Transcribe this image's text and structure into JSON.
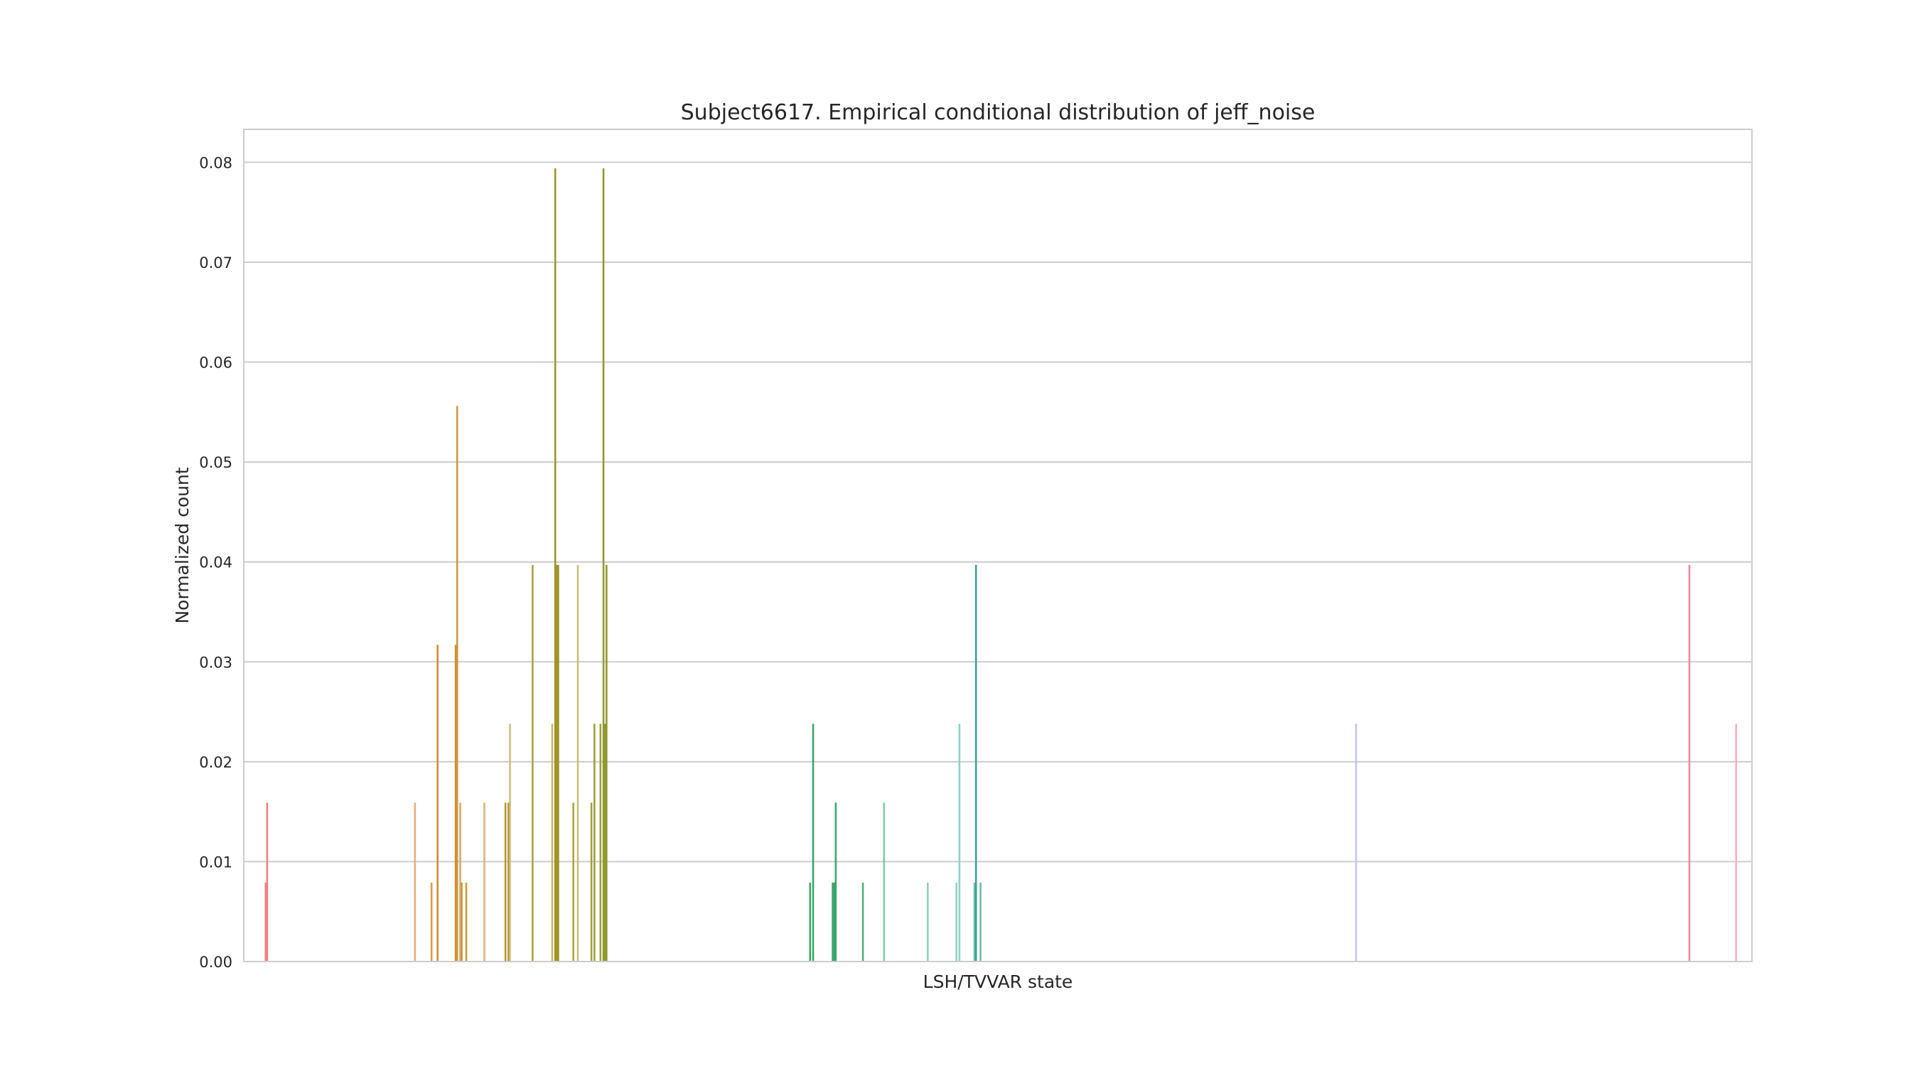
{
  "chart_data": {
    "type": "bar",
    "title": "Subject6617. Empirical conditional distribution of jeff_noise",
    "xlabel": "LSH/TVVAR state",
    "ylabel": "Normalized count",
    "ylim": [
      0,
      0.0833
    ],
    "yticks": [
      "0.00",
      "0.01",
      "0.02",
      "0.03",
      "0.04",
      "0.05",
      "0.06",
      "0.07",
      "0.08"
    ],
    "grid": "horizontal",
    "legend": "none",
    "x_tick_labels_visible": false,
    "num_categories": 1000,
    "bars": [
      {
        "i": 14,
        "value": 0.0079,
        "color": "#f08080"
      },
      {
        "i": 15,
        "value": 0.0159,
        "color": "#f08080"
      },
      {
        "i": 113,
        "value": 0.0159,
        "color": "#e8b07c"
      },
      {
        "i": 124,
        "value": 0.0079,
        "color": "#d9984f"
      },
      {
        "i": 128,
        "value": 0.0317,
        "color": "#d08a36"
      },
      {
        "i": 140,
        "value": 0.0317,
        "color": "#d08a36"
      },
      {
        "i": 141,
        "value": 0.0556,
        "color": "#c99a3e"
      },
      {
        "i": 143,
        "value": 0.0159,
        "color": "#d5a867"
      },
      {
        "i": 144,
        "value": 0.0079,
        "color": "#c99a3e"
      },
      {
        "i": 147,
        "value": 0.0079,
        "color": "#c99a3e"
      },
      {
        "i": 159,
        "value": 0.0159,
        "color": "#d5b57c"
      },
      {
        "i": 173,
        "value": 0.0159,
        "color": "#b8952e"
      },
      {
        "i": 175,
        "value": 0.0159,
        "color": "#b8952e"
      },
      {
        "i": 176,
        "value": 0.0238,
        "color": "#cdbf7e"
      },
      {
        "i": 191,
        "value": 0.0397,
        "color": "#b5a040"
      },
      {
        "i": 204,
        "value": 0.0238,
        "color": "#c4b870"
      },
      {
        "i": 206,
        "value": 0.0794,
        "color": "#a09426"
      },
      {
        "i": 207,
        "value": 0.0397,
        "color": "#a09426"
      },
      {
        "i": 208,
        "value": 0.0397,
        "color": "#a09426"
      },
      {
        "i": 218,
        "value": 0.0159,
        "color": "#aba640"
      },
      {
        "i": 221,
        "value": 0.0397,
        "color": "#c4c07a"
      },
      {
        "i": 230,
        "value": 0.0159,
        "color": "#9ea03a"
      },
      {
        "i": 232,
        "value": 0.0238,
        "color": "#9ea03a"
      },
      {
        "i": 236,
        "value": 0.0238,
        "color": "#9ea03a"
      },
      {
        "i": 238,
        "value": 0.0794,
        "color": "#8f9a2e"
      },
      {
        "i": 239,
        "value": 0.0238,
        "color": "#8f9a2e"
      },
      {
        "i": 240,
        "value": 0.0397,
        "color": "#8f9a2e"
      },
      {
        "i": 375,
        "value": 0.0079,
        "color": "#3aa56a"
      },
      {
        "i": 377,
        "value": 0.0238,
        "color": "#3aa56a"
      },
      {
        "i": 390,
        "value": 0.0079,
        "color": "#3aa56a"
      },
      {
        "i": 391,
        "value": 0.0079,
        "color": "#3aa56a"
      },
      {
        "i": 392,
        "value": 0.0159,
        "color": "#3aa56a"
      },
      {
        "i": 410,
        "value": 0.0079,
        "color": "#4fb07c"
      },
      {
        "i": 424,
        "value": 0.0159,
        "color": "#7fcca4"
      },
      {
        "i": 453,
        "value": 0.0079,
        "color": "#8fd1b6"
      },
      {
        "i": 472,
        "value": 0.0079,
        "color": "#8fd1c0"
      },
      {
        "i": 474,
        "value": 0.0238,
        "color": "#8fd1c0"
      },
      {
        "i": 484,
        "value": 0.0079,
        "color": "#6cbfaa"
      },
      {
        "i": 485,
        "value": 0.0397,
        "color": "#3ea08e"
      },
      {
        "i": 488,
        "value": 0.0079,
        "color": "#6cbfaa"
      },
      {
        "i": 737,
        "value": 0.0238,
        "color": "#c4c4ee"
      },
      {
        "i": 958,
        "value": 0.0397,
        "color": "#ee8a9c"
      },
      {
        "i": 989,
        "value": 0.0238,
        "color": "#f4b2c0"
      }
    ]
  }
}
